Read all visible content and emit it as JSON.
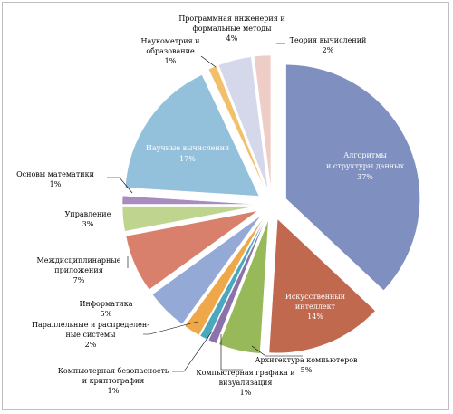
{
  "chart_data": {
    "type": "pie",
    "title": "",
    "exploded": true,
    "slices": [
      {
        "label": "Алгоритмы и структуры данных",
        "percent_label": "37%",
        "value": 37,
        "color": "#7f8fbf"
      },
      {
        "label": "Искусственный интеллект",
        "percent_label": "14%",
        "value": 14,
        "color": "#c0694f"
      },
      {
        "label": "Архитектура компьютеров",
        "percent_label": "5%",
        "value": 5,
        "color": "#98b95a"
      },
      {
        "label": "Компьютерная графика и визуализация",
        "percent_label": "1%",
        "value": 1,
        "color": "#8c72aa"
      },
      {
        "label": "Компьютерная безопасность и криптография",
        "percent_label": "1%",
        "value": 1,
        "color": "#4aa7bd"
      },
      {
        "label": "Параллельные и распределенные системы",
        "percent_label": "2%",
        "value": 2,
        "color": "#eea84a"
      },
      {
        "label": "Информатика",
        "percent_label": "5%",
        "value": 5,
        "color": "#95a9d6"
      },
      {
        "label": "Междисциплинарные приложения",
        "percent_label": "7%",
        "value": 7,
        "color": "#d9806d"
      },
      {
        "label": "Управление",
        "percent_label": "3%",
        "value": 3,
        "color": "#bfd48e"
      },
      {
        "label": "Основы математики",
        "percent_label": "1%",
        "value": 1,
        "color": "#a98cbf"
      },
      {
        "label": "Научные вычисления",
        "percent_label": "17%",
        "value": 17,
        "color": "#93c0da"
      },
      {
        "label": "Наукометрия и образование",
        "percent_label": "1%",
        "value": 1,
        "color": "#f2bf6a"
      },
      {
        "label": "Программная инженерия и формальные методы",
        "percent_label": "4%",
        "value": 4,
        "color": "#d5d8ea"
      },
      {
        "label": "Теория вычислений",
        "percent_label": "2%",
        "value": 2,
        "color": "#efcdc7"
      }
    ]
  },
  "labels": {
    "algorithms": {
      "line1": "Алгоритмы",
      "line2": "и структуры данных",
      "pct": "37%"
    },
    "ai": {
      "line1": "Искусственный",
      "line2": "интеллект",
      "pct": "14%"
    },
    "arch": {
      "line1": "Архитектура компьютеров",
      "pct": "5%"
    },
    "graphics": {
      "line1": "Компьютерная графика и",
      "line2": "визуализация",
      "pct": "1%"
    },
    "security": {
      "line1": "Компьютерная безопасность",
      "line2": "и криптография",
      "pct": "1%"
    },
    "parallel": {
      "line1": "Параллельные и распределен-",
      "line2": "ные системы",
      "pct": "2%"
    },
    "informatics": {
      "line1": "Информатика",
      "pct": "5%"
    },
    "interdisc": {
      "line1": "Междисциплинарные",
      "line2": "приложения",
      "pct": "7%"
    },
    "management": {
      "line1": "Управление",
      "pct": "3%"
    },
    "math": {
      "line1": "Основы математики",
      "pct": "1%"
    },
    "scientific": {
      "line1": "Научные вычисления",
      "pct": "17%"
    },
    "sciento": {
      "line1": "Наукометрия и",
      "line2": "образование",
      "pct": "1%"
    },
    "softeng": {
      "line1": "Программная инженерия и",
      "line2": "формальные методы",
      "pct": "4%"
    },
    "theory": {
      "line1": "Теория вычислений",
      "pct": "2%"
    }
  }
}
